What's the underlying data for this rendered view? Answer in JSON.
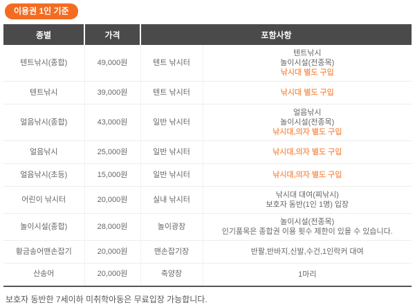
{
  "badge": {
    "label": "이용권 1인 기준"
  },
  "table": {
    "headers": [
      "종별",
      "가격",
      "포함사항"
    ],
    "rows": [
      {
        "type": "텐트낚시(종합)",
        "price": "49,000원",
        "place": "텐트 낚시터",
        "details": [
          "텐트낚시",
          "놀이시설(전종목)"
        ],
        "highlight": "낚시대 별도 구입"
      },
      {
        "type": "텐트낚시",
        "price": "39,000원",
        "place": "텐트 낚시터",
        "details": [],
        "highlight": "낚시대 별도 구입"
      },
      {
        "type": "얼음낚시(종합)",
        "price": "43,000원",
        "place": "일반 낚시터",
        "details": [
          "얼음낚시",
          "놀이시설(전종목)"
        ],
        "highlight": "낚시대,의자 별도 구입"
      },
      {
        "type": "얼음낚시",
        "price": "25,000원",
        "place": "일반 낚시터",
        "details": [],
        "highlight": "낚시대,의자 별도 구입"
      },
      {
        "type": "얼음낚시(초등)",
        "price": "15,000원",
        "place": "일반 낚시터",
        "details": [],
        "highlight": "낚시대,의자 별도 구입"
      },
      {
        "type": "어린이 낚시터",
        "price": "20,000원",
        "place": "실내 낚시터",
        "details": [
          "낚시대 대여(찌낚시)",
          "보호자 동반(1인 1명) 입장"
        ],
        "highlight": ""
      },
      {
        "type": "놀이시설(종합)",
        "price": "28,000원",
        "place": "놀이광장",
        "details": [
          "놀이시설(전종목)",
          "인기품목은 종합권 이용 횟수 제한이 있을 수 있습니다."
        ],
        "highlight": ""
      },
      {
        "type": "황금송어맨손잡기",
        "price": "20,000원",
        "place": "맨손잡기장",
        "details": [
          "반팔,반바지,신발,수건,1인락커 대여"
        ],
        "highlight": ""
      },
      {
        "type": "산송어",
        "price": "20,000원",
        "place": "축양장",
        "details": [
          "1마리"
        ],
        "highlight": ""
      }
    ]
  },
  "footer": {
    "note": "보호자 동반한 7세이하 미취학아동은 무료입장 가능합니다."
  },
  "colors": {
    "accent": "#f36c21",
    "highlight_text": "#f79c62",
    "header_bg": "#4a4a4a",
    "body_text": "#666666"
  }
}
